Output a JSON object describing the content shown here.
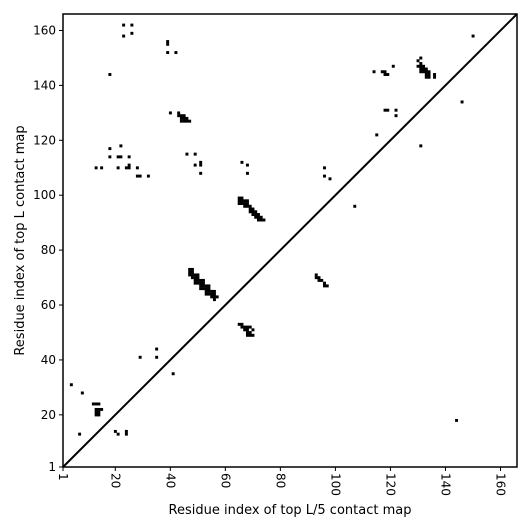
{
  "chart_data": {
    "type": "scatter",
    "xlabel": "Residue index of top L/5 contact map",
    "ylabel": "Residue index of top L contact map",
    "xlim": [
      1,
      166
    ],
    "ylim": [
      1,
      166
    ],
    "x_ticks": [
      1,
      20,
      40,
      60,
      80,
      100,
      120,
      140,
      160
    ],
    "y_ticks": [
      1,
      20,
      40,
      60,
      80,
      100,
      120,
      140,
      160
    ],
    "x_tick_labels": [
      "1",
      "20",
      "40",
      "60",
      "80",
      "100",
      "120",
      "140",
      "160"
    ],
    "y_tick_labels": [
      "1",
      "20",
      "40",
      "60",
      "80",
      "100",
      "120",
      "140",
      "160"
    ],
    "x_tick_rotation_deg": -90,
    "diagonal": true,
    "marker_color": "#000000",
    "series": [
      {
        "values": [
          [
            23,
            162
          ],
          [
            26,
            162
          ],
          [
            23,
            158
          ],
          [
            26,
            159
          ],
          [
            39,
            156
          ],
          [
            39,
            155
          ],
          [
            39,
            152
          ],
          [
            42,
            152
          ],
          [
            18,
            144
          ],
          [
            40,
            130
          ],
          [
            43,
            130
          ],
          [
            43,
            129
          ],
          [
            44,
            129
          ],
          [
            45,
            129
          ],
          [
            44,
            128
          ],
          [
            45,
            128
          ],
          [
            46,
            128
          ],
          [
            44,
            127
          ],
          [
            45,
            127
          ],
          [
            46,
            127
          ],
          [
            47,
            127
          ],
          [
            18,
            117
          ],
          [
            22,
            118
          ],
          [
            22,
            114
          ],
          [
            46,
            115
          ],
          [
            49,
            115
          ],
          [
            18,
            114
          ],
          [
            21,
            114
          ],
          [
            25,
            114
          ],
          [
            13,
            110
          ],
          [
            15,
            110
          ],
          [
            21,
            110
          ],
          [
            24,
            110
          ],
          [
            25,
            110
          ],
          [
            25,
            111
          ],
          [
            28,
            110
          ],
          [
            49,
            111
          ],
          [
            51,
            112
          ],
          [
            51,
            111
          ],
          [
            51,
            108
          ],
          [
            29,
            107
          ],
          [
            28,
            107
          ],
          [
            32,
            107
          ],
          [
            66,
            112
          ],
          [
            68,
            111
          ],
          [
            68,
            108
          ],
          [
            65,
            99
          ],
          [
            65,
            98
          ],
          [
            65,
            97
          ],
          [
            66,
            99
          ],
          [
            66,
            98
          ],
          [
            66,
            97
          ],
          [
            67,
            98
          ],
          [
            67,
            97
          ],
          [
            67,
            96
          ],
          [
            68,
            98
          ],
          [
            68,
            97
          ],
          [
            68,
            96
          ],
          [
            69,
            96
          ],
          [
            69,
            95
          ],
          [
            69,
            94
          ],
          [
            70,
            95
          ],
          [
            70,
            94
          ],
          [
            70,
            93
          ],
          [
            71,
            94
          ],
          [
            71,
            93
          ],
          [
            71,
            92
          ],
          [
            72,
            93
          ],
          [
            72,
            92
          ],
          [
            72,
            91
          ],
          [
            73,
            92
          ],
          [
            73,
            91
          ],
          [
            74,
            91
          ],
          [
            96,
            110
          ],
          [
            96,
            107
          ],
          [
            98,
            106
          ],
          [
            107,
            96
          ],
          [
            47,
            73
          ],
          [
            48,
            73
          ],
          [
            47,
            72
          ],
          [
            48,
            72
          ],
          [
            47,
            71
          ],
          [
            48,
            71
          ],
          [
            49,
            71
          ],
          [
            50,
            71
          ],
          [
            48,
            70
          ],
          [
            49,
            70
          ],
          [
            50,
            70
          ],
          [
            49,
            69
          ],
          [
            50,
            69
          ],
          [
            51,
            69
          ],
          [
            52,
            69
          ],
          [
            49,
            68
          ],
          [
            50,
            68
          ],
          [
            51,
            68
          ],
          [
            52,
            68
          ],
          [
            51,
            67
          ],
          [
            52,
            67
          ],
          [
            53,
            67
          ],
          [
            54,
            67
          ],
          [
            51,
            66
          ],
          [
            52,
            66
          ],
          [
            53,
            66
          ],
          [
            54,
            66
          ],
          [
            53,
            65
          ],
          [
            54,
            65
          ],
          [
            55,
            65
          ],
          [
            56,
            65
          ],
          [
            53,
            64
          ],
          [
            54,
            64
          ],
          [
            55,
            64
          ],
          [
            56,
            64
          ],
          [
            55,
            63
          ],
          [
            56,
            63
          ],
          [
            57,
            63
          ],
          [
            56,
            62
          ],
          [
            93,
            71
          ],
          [
            93,
            70
          ],
          [
            94,
            70
          ],
          [
            94,
            69
          ],
          [
            95,
            69
          ],
          [
            96,
            68
          ],
          [
            96,
            67
          ],
          [
            97,
            67
          ],
          [
            65,
            53
          ],
          [
            66,
            53
          ],
          [
            66,
            52
          ],
          [
            67,
            52
          ],
          [
            67,
            51
          ],
          [
            68,
            52
          ],
          [
            68,
            51
          ],
          [
            69,
            52
          ],
          [
            68,
            50
          ],
          [
            69,
            50
          ],
          [
            68,
            49
          ],
          [
            69,
            49
          ],
          [
            70,
            49
          ],
          [
            70,
            51
          ],
          [
            29,
            41
          ],
          [
            35,
            44
          ],
          [
            35,
            41
          ],
          [
            41,
            35
          ],
          [
            4,
            31
          ],
          [
            8,
            28
          ],
          [
            12,
            24
          ],
          [
            13,
            24
          ],
          [
            14,
            24
          ],
          [
            13,
            22
          ],
          [
            14,
            22
          ],
          [
            15,
            22
          ],
          [
            13,
            21
          ],
          [
            14,
            21
          ],
          [
            13,
            20
          ],
          [
            14,
            20
          ],
          [
            7,
            13
          ],
          [
            20,
            14
          ],
          [
            21,
            13
          ],
          [
            24,
            14
          ],
          [
            24,
            13
          ],
          [
            114,
            145
          ],
          [
            117,
            145
          ],
          [
            118,
            145
          ],
          [
            118,
            144
          ],
          [
            119,
            144
          ],
          [
            121,
            147
          ],
          [
            115,
            122
          ],
          [
            118,
            131
          ],
          [
            119,
            131
          ],
          [
            122,
            131
          ],
          [
            122,
            129
          ],
          [
            130,
            149
          ],
          [
            131,
            150
          ],
          [
            130,
            147
          ],
          [
            131,
            148
          ],
          [
            131,
            147
          ],
          [
            132,
            147
          ],
          [
            131,
            146
          ],
          [
            132,
            146
          ],
          [
            133,
            146
          ],
          [
            131,
            145
          ],
          [
            132,
            145
          ],
          [
            133,
            145
          ],
          [
            134,
            145
          ],
          [
            133,
            144
          ],
          [
            134,
            144
          ],
          [
            133,
            143
          ],
          [
            134,
            143
          ],
          [
            136,
            144
          ],
          [
            136,
            143
          ],
          [
            131,
            118
          ],
          [
            146,
            134
          ],
          [
            150,
            158
          ],
          [
            144,
            18
          ]
        ]
      }
    ]
  }
}
